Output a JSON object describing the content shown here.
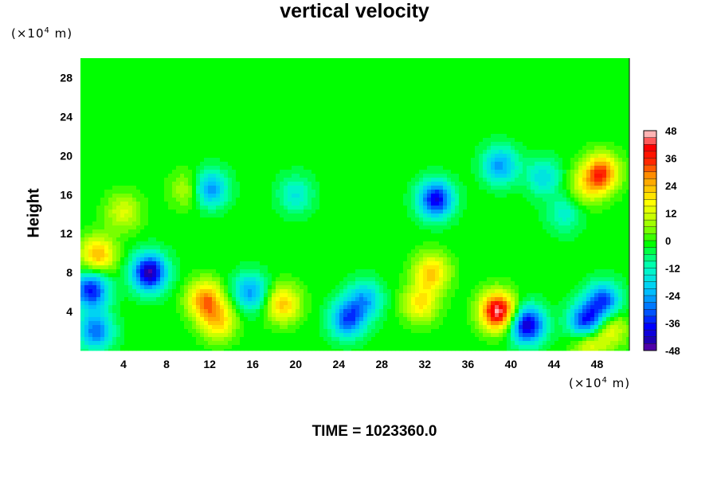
{
  "chart_data": {
    "type": "heatmap",
    "title": "vertical velocity",
    "ylabel": "Height",
    "x_unit": "(×10⁴ m)",
    "y_unit": "(×10⁴ m)",
    "xlim": [
      0,
      51
    ],
    "ylim": [
      0,
      30
    ],
    "x_ticks": [
      4,
      8,
      12,
      16,
      20,
      24,
      28,
      32,
      36,
      40,
      44,
      48
    ],
    "y_ticks": [
      4,
      8,
      12,
      16,
      20,
      24,
      28
    ],
    "colorbar": {
      "min": -48,
      "max": 48,
      "step": 6,
      "tick_labels": [
        48,
        36,
        24,
        12,
        0,
        -12,
        -24,
        -36,
        -48
      ]
    },
    "background_value": 0,
    "features": [
      {
        "x": 11.6,
        "y": 5.2,
        "value": 30
      },
      {
        "x": 12.8,
        "y": 3.0,
        "value": 22
      },
      {
        "x": 18.8,
        "y": 4.8,
        "value": 24
      },
      {
        "x": 32.6,
        "y": 8.0,
        "value": 24
      },
      {
        "x": 31.6,
        "y": 4.8,
        "value": 20
      },
      {
        "x": 38.8,
        "y": 4.0,
        "value": 48
      },
      {
        "x": 48.4,
        "y": 18.2,
        "value": 34
      },
      {
        "x": 1.6,
        "y": 9.8,
        "value": 26
      },
      {
        "x": 49.2,
        "y": 2.4,
        "value": 18
      },
      {
        "x": 47.2,
        "y": 1.0,
        "value": 22
      },
      {
        "x": 47.0,
        "y": 16.8,
        "value": 14
      },
      {
        "x": 4.0,
        "y": 14.2,
        "value": 14
      },
      {
        "x": 10.0,
        "y": 16.5,
        "value": 12
      },
      {
        "x": 41.5,
        "y": 2.6,
        "value": -42
      },
      {
        "x": 47.0,
        "y": 2.8,
        "value": -40
      },
      {
        "x": 48.6,
        "y": 5.0,
        "value": -32
      },
      {
        "x": 33.0,
        "y": 15.5,
        "value": -38
      },
      {
        "x": 6.4,
        "y": 8.0,
        "value": -44
      },
      {
        "x": 1.0,
        "y": 6.2,
        "value": -36
      },
      {
        "x": 1.4,
        "y": 2.0,
        "value": -28
      },
      {
        "x": 15.8,
        "y": 6.0,
        "value": -24
      },
      {
        "x": 24.8,
        "y": 3.2,
        "value": -30
      },
      {
        "x": 26.4,
        "y": 5.2,
        "value": -22
      },
      {
        "x": 12.0,
        "y": 16.6,
        "value": -26
      },
      {
        "x": 39.0,
        "y": 19.0,
        "value": -24
      },
      {
        "x": 43.0,
        "y": 17.8,
        "value": -16
      },
      {
        "x": 20.0,
        "y": 16.0,
        "value": -14
      },
      {
        "x": 45.0,
        "y": 14.0,
        "value": -12
      }
    ]
  },
  "footer": {
    "time_label": "TIME = 1023360.0"
  }
}
